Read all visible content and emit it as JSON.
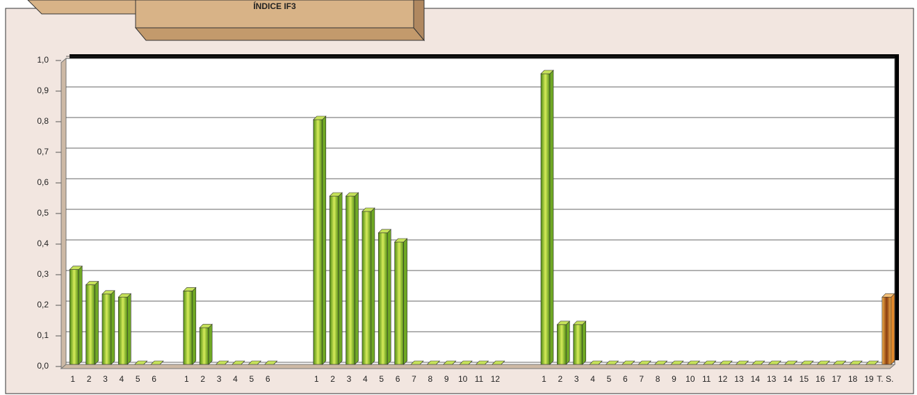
{
  "chart_data": {
    "type": "bar",
    "title": "ÍNDICE IF3",
    "categories": [
      "1",
      "2",
      "3",
      "4",
      "5",
      "6",
      null,
      "1",
      "2",
      "3",
      "4",
      "5",
      "6",
      null,
      null,
      "1",
      "2",
      "3",
      "4",
      "5",
      "6",
      "7",
      "8",
      "9",
      "10",
      "11",
      "12",
      null,
      null,
      "1",
      "2",
      "3",
      "4",
      "5",
      "6",
      "7",
      "8",
      "9",
      "10",
      "11",
      "12",
      "13",
      "14",
      "13",
      "14",
      "15",
      "16",
      "17",
      "18",
      "19",
      "T. S."
    ],
    "values": [
      0.31,
      0.26,
      0.23,
      0.22,
      0,
      0,
      null,
      0.24,
      0.12,
      0,
      0,
      0,
      0,
      null,
      null,
      0.8,
      0.55,
      0.55,
      0.5,
      0.43,
      0.4,
      0,
      0,
      0,
      0,
      0,
      0,
      null,
      null,
      0.95,
      0.13,
      0.13,
      0,
      0,
      0,
      0,
      0,
      0,
      0,
      0,
      0,
      0,
      0,
      0,
      0,
      0,
      0,
      0,
      0,
      0,
      0.22
    ],
    "color": "#6fa824",
    "accent": {
      "index": 50,
      "color": "#e0892c"
    },
    "ylim": [
      0,
      1
    ],
    "yticks": [
      {
        "value": 0,
        "label": "0,0"
      },
      {
        "value": 0.1,
        "label": "0,1"
      },
      {
        "value": 0.2,
        "label": "0,2"
      },
      {
        "value": 0.3,
        "label": "0,3"
      },
      {
        "value": 0.4,
        "label": "0,4"
      },
      {
        "value": 0.5,
        "label": "0,5"
      },
      {
        "value": 0.6,
        "label": "0,6"
      },
      {
        "value": 0.7,
        "label": "0,7"
      },
      {
        "value": 0.8,
        "label": "0,8"
      },
      {
        "value": 0.9,
        "label": "0,9"
      },
      {
        "value": 1,
        "label": "1,0"
      }
    ],
    "grid": true
  }
}
